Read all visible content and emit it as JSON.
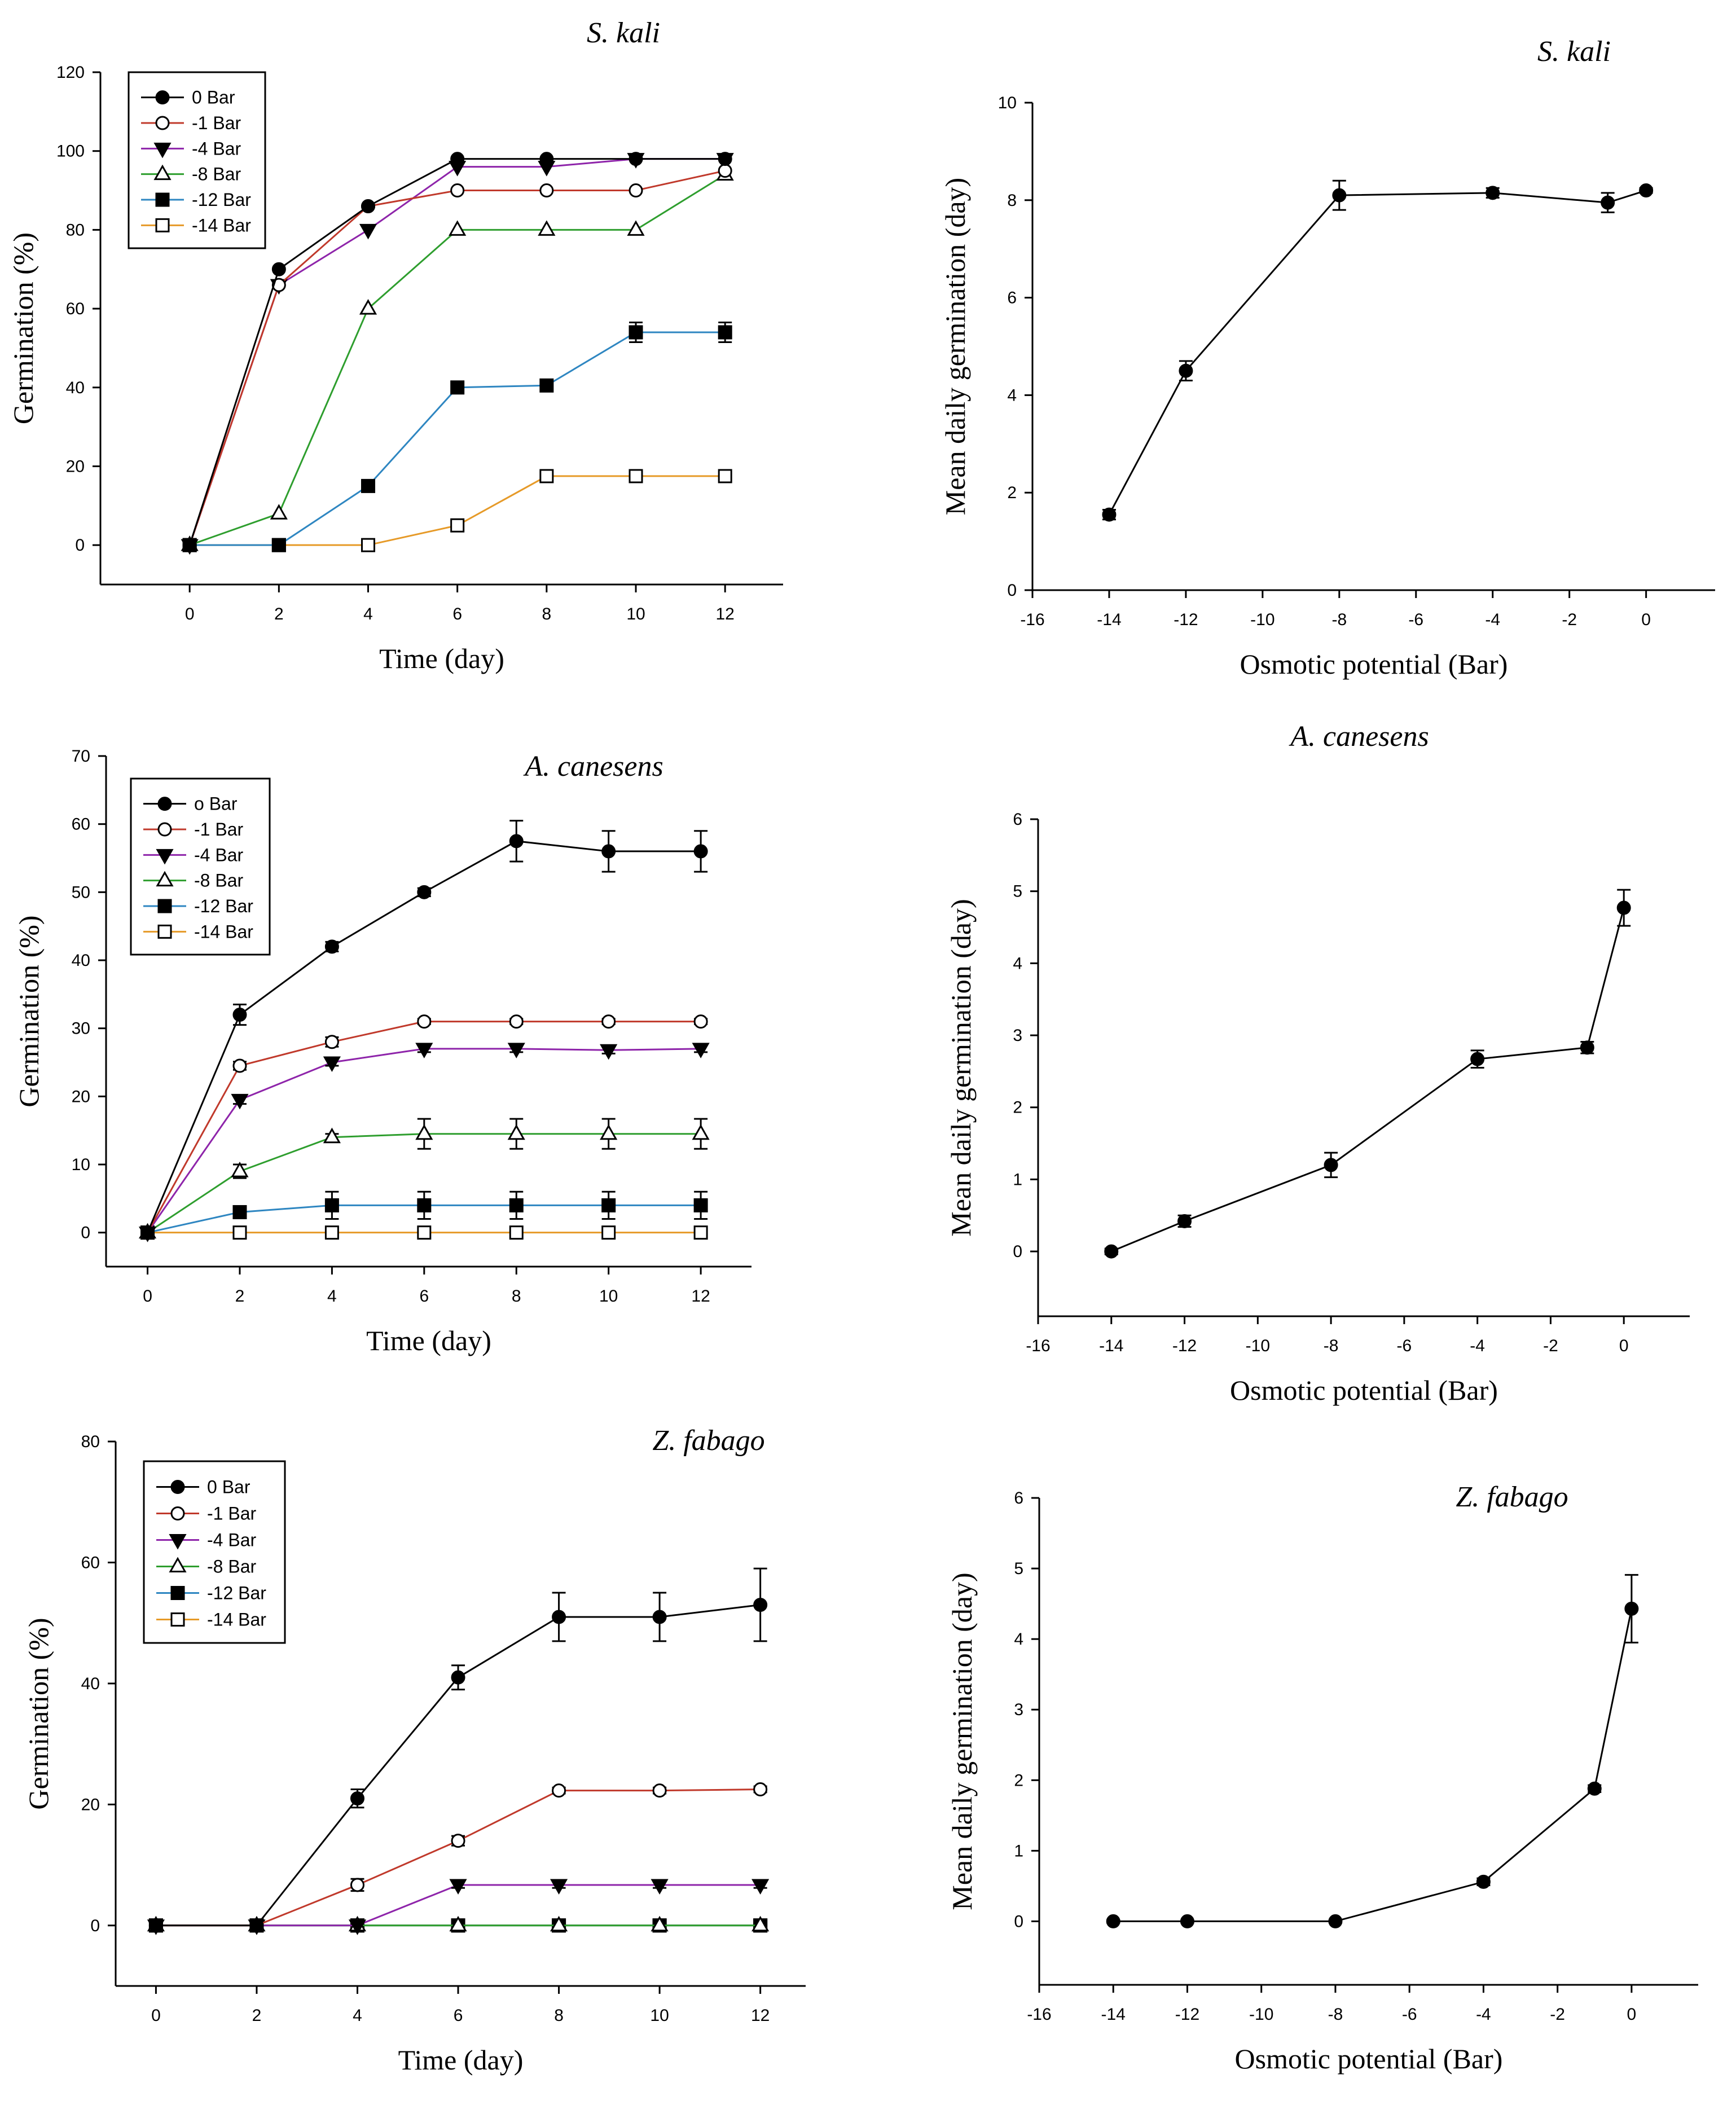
{
  "chart_data": [
    {
      "type": "line",
      "title": "S. kali",
      "xlabel": "Time (day)",
      "ylabel": "Germination (%)",
      "xlim": [
        -2,
        13.3
      ],
      "ylim": [
        -10,
        120
      ],
      "xticks": [
        0,
        2,
        4,
        6,
        8,
        10,
        12
      ],
      "yticks": [
        0,
        20,
        40,
        60,
        80,
        100,
        120
      ],
      "legend_position": "top-left",
      "x": [
        0,
        2,
        4,
        6,
        8,
        10,
        12
      ],
      "series": [
        {
          "name": "0 Bar",
          "color": "#000000",
          "marker": "filled-circle",
          "values": [
            0,
            70,
            86,
            98,
            98,
            98,
            98
          ]
        },
        {
          "name": "-1 Bar",
          "color": "#c0392b",
          "marker": "open-circle",
          "values": [
            0,
            66,
            86,
            90,
            90,
            90,
            95
          ]
        },
        {
          "name": "-4 Bar",
          "color": "#8e24aa",
          "marker": "filled-triangle-down",
          "values": [
            0,
            66,
            80,
            96,
            96,
            98,
            98
          ]
        },
        {
          "name": "-8 Bar",
          "color": "#2e9e2e",
          "marker": "open-triangle-up",
          "values": [
            0,
            8,
            60,
            80,
            80,
            80,
            94
          ]
        },
        {
          "name": "-12 Bar",
          "color": "#2e86c1",
          "marker": "filled-square",
          "values": [
            0,
            0,
            15,
            40,
            40.5,
            54,
            54
          ]
        },
        {
          "name": "-14 Bar",
          "color": "#e69a28",
          "marker": "open-square",
          "values": [
            0,
            0,
            0,
            5,
            17.5,
            17.5,
            17.5
          ]
        }
      ],
      "errors": [
        [
          0,
          0,
          0,
          0,
          0,
          0,
          0
        ],
        [
          0,
          0,
          0,
          0,
          0,
          0,
          0
        ],
        [
          0,
          0,
          0,
          0,
          0,
          0,
          0
        ],
        [
          0,
          0,
          0,
          0,
          0,
          0,
          0
        ],
        [
          0,
          0,
          0,
          0,
          0,
          2.5,
          2.5
        ],
        [
          0,
          0,
          0,
          0,
          0,
          0,
          0
        ]
      ]
    },
    {
      "type": "line",
      "title": "S. kali",
      "xlabel": "Osmotic potential (Bar)",
      "ylabel": "Mean daily germination (day)",
      "xlim": [
        -16,
        1.8
      ],
      "ylim": [
        0,
        10
      ],
      "xticks": [
        -16,
        -14,
        -12,
        -10,
        -8,
        -6,
        -4,
        -2,
        0
      ],
      "yticks": [
        0,
        2,
        4,
        6,
        8,
        10
      ],
      "x": [
        -14,
        -12,
        -8,
        -4,
        -1,
        0
      ],
      "series": [
        {
          "name": "",
          "color": "#000000",
          "marker": "filled-circle",
          "values": [
            1.55,
            4.5,
            8.1,
            8.15,
            7.95,
            8.2
          ]
        }
      ],
      "errors": [
        [
          0.1,
          0.2,
          0.3,
          0.1,
          0.2,
          0.05
        ]
      ]
    },
    {
      "type": "line",
      "title": "A. canesens",
      "xlabel": "Time (day)",
      "ylabel": "Germination (%)",
      "xlim": [
        -0.9,
        13.1
      ],
      "ylim": [
        -5,
        70
      ],
      "xticks": [
        0,
        2,
        4,
        6,
        8,
        10,
        12
      ],
      "yticks": [
        0,
        10,
        20,
        30,
        40,
        50,
        60,
        70
      ],
      "legend_position": "top-left",
      "x": [
        0,
        2,
        4,
        6,
        8,
        10,
        12
      ],
      "series": [
        {
          "name": "o Bar",
          "color": "#000000",
          "marker": "filled-circle",
          "values": [
            0,
            32,
            42,
            50,
            57.5,
            56,
            56
          ]
        },
        {
          "name": "-1 Bar",
          "color": "#c0392b",
          "marker": "open-circle",
          "values": [
            0,
            24.5,
            28,
            31,
            31,
            31,
            31
          ]
        },
        {
          "name": "-4 Bar",
          "color": "#8e24aa",
          "marker": "filled-triangle-down",
          "values": [
            0,
            19.5,
            25,
            27,
            27,
            26.8,
            27
          ]
        },
        {
          "name": "-8 Bar",
          "color": "#2e9e2e",
          "marker": "open-triangle-up",
          "values": [
            0,
            9,
            14,
            14.5,
            14.5,
            14.5,
            14.5
          ]
        },
        {
          "name": "-12 Bar",
          "color": "#2e86c1",
          "marker": "filled-square",
          "values": [
            0,
            3,
            4,
            4,
            4,
            4,
            4
          ]
        },
        {
          "name": "-14 Bar",
          "color": "#e69a28",
          "marker": "open-square",
          "values": [
            0,
            0,
            0,
            0,
            0,
            0,
            0
          ]
        }
      ],
      "errors": [
        [
          0,
          1.5,
          0.7,
          0.6,
          3,
          3,
          3
        ],
        [
          0,
          0.6,
          0.7,
          0.4,
          0.4,
          0.4,
          0.4
        ],
        [
          0,
          0.6,
          0.5,
          0.5,
          0.5,
          0.5,
          0.5
        ],
        [
          0,
          1,
          0.5,
          2.2,
          2.2,
          2.2,
          2.2
        ],
        [
          0,
          0.5,
          2,
          2,
          2,
          2,
          2
        ],
        [
          0,
          0,
          0,
          0,
          0,
          0,
          0
        ]
      ]
    },
    {
      "type": "line",
      "title": "A. canesens",
      "xlabel": "Osmotic potential (Bar)",
      "ylabel": "Mean daily germination (day)",
      "xlim": [
        -16,
        1.8
      ],
      "ylim": [
        -0.9,
        6
      ],
      "xticks": [
        -16,
        -14,
        -12,
        -10,
        -8,
        -6,
        -4,
        -2,
        0
      ],
      "yticks": [
        0,
        1,
        2,
        3,
        4,
        5,
        6
      ],
      "x": [
        -14,
        -12,
        -8,
        -4,
        -1,
        0
      ],
      "series": [
        {
          "name": "",
          "color": "#000000",
          "marker": "filled-circle",
          "values": [
            0,
            0.42,
            1.2,
            2.67,
            2.83,
            4.77
          ]
        }
      ],
      "errors": [
        [
          0.04,
          0.08,
          0.17,
          0.12,
          0.08,
          0.25
        ]
      ]
    },
    {
      "type": "line",
      "title": "Z. fabago",
      "xlabel": "Time (day)",
      "ylabel": "Germination (%)",
      "xlim": [
        -0.8,
        12.9
      ],
      "ylim": [
        -10,
        80
      ],
      "xticks": [
        0,
        2,
        4,
        6,
        8,
        10,
        12
      ],
      "yticks": [
        0,
        20,
        40,
        60,
        80
      ],
      "legend_position": "top-left",
      "x": [
        0,
        2,
        4,
        6,
        8,
        10,
        12
      ],
      "series": [
        {
          "name": "0 Bar",
          "color": "#000000",
          "marker": "filled-circle",
          "values": [
            0,
            0,
            21,
            41,
            51,
            51,
            53
          ]
        },
        {
          "name": "-1 Bar",
          "color": "#c0392b",
          "marker": "open-circle",
          "values": [
            0,
            0,
            6.7,
            14,
            22.3,
            22.3,
            22.5
          ]
        },
        {
          "name": "-4 Bar",
          "color": "#8e24aa",
          "marker": "filled-triangle-down",
          "values": [
            0,
            0,
            0,
            6.7,
            6.7,
            6.7,
            6.7
          ]
        },
        {
          "name": "-8 Bar",
          "color": "#2e9e2e",
          "marker": "open-triangle-up",
          "values": [
            0,
            0,
            0,
            0,
            0,
            0,
            0
          ]
        },
        {
          "name": "-12 Bar",
          "color": "#2e86c1",
          "marker": "filled-square",
          "values": [
            0,
            0,
            0,
            0,
            0,
            0,
            0
          ]
        },
        {
          "name": "-14 Bar",
          "color": "#e69a28",
          "marker": "open-square",
          "values": [
            0,
            0,
            0,
            0,
            0,
            0,
            0
          ]
        }
      ],
      "errors": [
        [
          0,
          0,
          1.5,
          2,
          4,
          4,
          6
        ],
        [
          0,
          0,
          1,
          0.8,
          0.5,
          0.5,
          0.5
        ],
        [
          0,
          0,
          0,
          0.5,
          0.5,
          0.5,
          0.5
        ],
        [
          0,
          0,
          0,
          0,
          0,
          0,
          0
        ],
        [
          0,
          0,
          0,
          0,
          0,
          0,
          0
        ],
        [
          0,
          0,
          0,
          0,
          0,
          0,
          0
        ]
      ]
    },
    {
      "type": "line",
      "title": "Z. fabago",
      "xlabel": "Osmotic potential (Bar)",
      "ylabel": "Mean daily germination (day)",
      "xlim": [
        -16,
        1.8
      ],
      "ylim": [
        -0.9,
        6
      ],
      "xticks": [
        -16,
        -14,
        -12,
        -10,
        -8,
        -6,
        -4,
        -2,
        0
      ],
      "yticks": [
        0,
        1,
        2,
        3,
        4,
        5,
        6
      ],
      "x": [
        -14,
        -12,
        -8,
        -4,
        -1,
        0
      ],
      "series": [
        {
          "name": "",
          "color": "#000000",
          "marker": "filled-circle",
          "values": [
            0,
            0,
            0,
            0.56,
            1.88,
            4.43
          ]
        }
      ],
      "errors": [
        [
          0.02,
          0.02,
          0.02,
          0.05,
          0.05,
          0.48
        ]
      ]
    }
  ]
}
